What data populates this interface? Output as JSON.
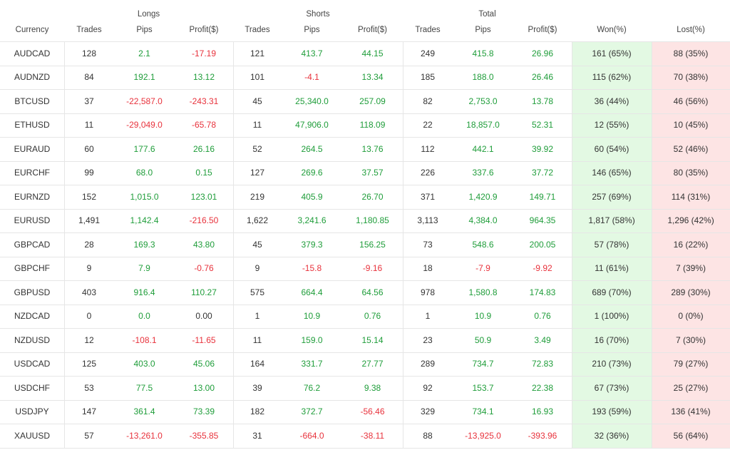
{
  "header": {
    "groups": [
      "Longs",
      "Shorts",
      "Total"
    ],
    "columns": [
      "Currency",
      "Trades",
      "Pips",
      "Profit($)",
      "Trades",
      "Pips",
      "Profit($)",
      "Trades",
      "Pips",
      "Profit($)",
      "Won(%)",
      "Lost(%)"
    ]
  },
  "table": {
    "rows": [
      [
        "AUDCAD",
        "128",
        "2.1",
        "-17.19",
        "121",
        "413.7",
        "44.15",
        "249",
        "415.8",
        "26.96",
        "161 (65%)",
        "88 (35%)"
      ],
      [
        "AUDNZD",
        "84",
        "192.1",
        "13.12",
        "101",
        "-4.1",
        "13.34",
        "185",
        "188.0",
        "26.46",
        "115 (62%)",
        "70 (38%)"
      ],
      [
        "BTCUSD",
        "37",
        "-22,587.0",
        "-243.31",
        "45",
        "25,340.0",
        "257.09",
        "82",
        "2,753.0",
        "13.78",
        "36 (44%)",
        "46 (56%)"
      ],
      [
        "ETHUSD",
        "11",
        "-29,049.0",
        "-65.78",
        "11",
        "47,906.0",
        "118.09",
        "22",
        "18,857.0",
        "52.31",
        "12 (55%)",
        "10 (45%)"
      ],
      [
        "EURAUD",
        "60",
        "177.6",
        "26.16",
        "52",
        "264.5",
        "13.76",
        "112",
        "442.1",
        "39.92",
        "60 (54%)",
        "52 (46%)"
      ],
      [
        "EURCHF",
        "99",
        "68.0",
        "0.15",
        "127",
        "269.6",
        "37.57",
        "226",
        "337.6",
        "37.72",
        "146 (65%)",
        "80 (35%)"
      ],
      [
        "EURNZD",
        "152",
        "1,015.0",
        "123.01",
        "219",
        "405.9",
        "26.70",
        "371",
        "1,420.9",
        "149.71",
        "257 (69%)",
        "114 (31%)"
      ],
      [
        "EURUSD",
        "1,491",
        "1,142.4",
        "-216.50",
        "1,622",
        "3,241.6",
        "1,180.85",
        "3,113",
        "4,384.0",
        "964.35",
        "1,817 (58%)",
        "1,296 (42%)"
      ],
      [
        "GBPCAD",
        "28",
        "169.3",
        "43.80",
        "45",
        "379.3",
        "156.25",
        "73",
        "548.6",
        "200.05",
        "57 (78%)",
        "16 (22%)"
      ],
      [
        "GBPCHF",
        "9",
        "7.9",
        "-0.76",
        "9",
        "-15.8",
        "-9.16",
        "18",
        "-7.9",
        "-9.92",
        "11 (61%)",
        "7 (39%)"
      ],
      [
        "GBPUSD",
        "403",
        "916.4",
        "110.27",
        "575",
        "664.4",
        "64.56",
        "978",
        "1,580.8",
        "174.83",
        "689 (70%)",
        "289 (30%)"
      ],
      [
        "NZDCAD",
        "0",
        "0.0",
        "0.00",
        "1",
        "10.9",
        "0.76",
        "1",
        "10.9",
        "0.76",
        "1 (100%)",
        "0 (0%)"
      ],
      [
        "NZDUSD",
        "12",
        "-108.1",
        "-11.65",
        "11",
        "159.0",
        "15.14",
        "23",
        "50.9",
        "3.49",
        "16 (70%)",
        "7 (30%)"
      ],
      [
        "USDCAD",
        "125",
        "403.0",
        "45.06",
        "164",
        "331.7",
        "27.77",
        "289",
        "734.7",
        "72.83",
        "210 (73%)",
        "79 (27%)"
      ],
      [
        "USDCHF",
        "53",
        "77.5",
        "13.00",
        "39",
        "76.2",
        "9.38",
        "92",
        "153.7",
        "22.38",
        "67 (73%)",
        "25 (27%)"
      ],
      [
        "USDJPY",
        "147",
        "361.4",
        "73.39",
        "182",
        "372.7",
        "-56.46",
        "329",
        "734.1",
        "16.93",
        "193 (59%)",
        "136 (41%)"
      ],
      [
        "XAUUSD",
        "57",
        "-13,261.0",
        "-355.85",
        "31",
        "-664.0",
        "-38.11",
        "88",
        "-13,925.0",
        "-393.96",
        "32 (36%)",
        "56 (64%)"
      ]
    ]
  }
}
